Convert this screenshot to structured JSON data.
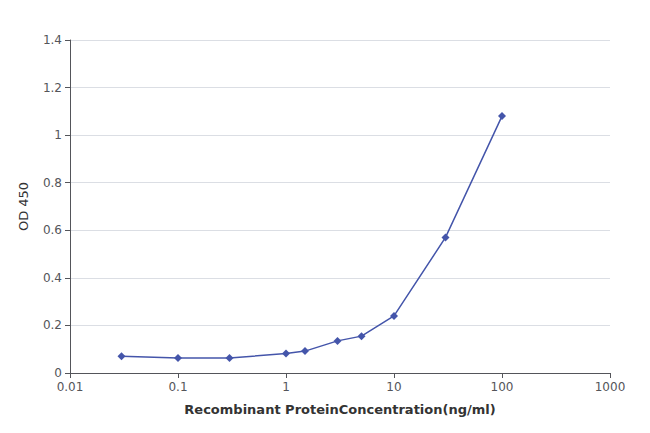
{
  "chart_data": {
    "type": "line",
    "xlabel": "Recombinant ProteinConcentration(ng/ml)",
    "ylabel": "OD 450",
    "x": [
      0.03,
      0.1,
      0.3,
      1.0,
      1.5,
      3.0,
      5.0,
      10.0,
      30.0,
      100.0
    ],
    "values": [
      0.07,
      0.063,
      0.063,
      0.082,
      0.092,
      0.135,
      0.155,
      0.24,
      0.57,
      1.08
    ],
    "color": "#4455aa",
    "marker": "diamond",
    "log": "x",
    "xlim": [
      0.01,
      1000
    ],
    "xticks": [
      0.01,
      0.1,
      1,
      10,
      100,
      1000
    ],
    "ylim": [
      0,
      1.4
    ],
    "yticks": [
      0,
      0.2,
      0.4,
      0.6,
      0.8,
      1.0,
      1.2,
      1.4
    ],
    "grid": true
  }
}
